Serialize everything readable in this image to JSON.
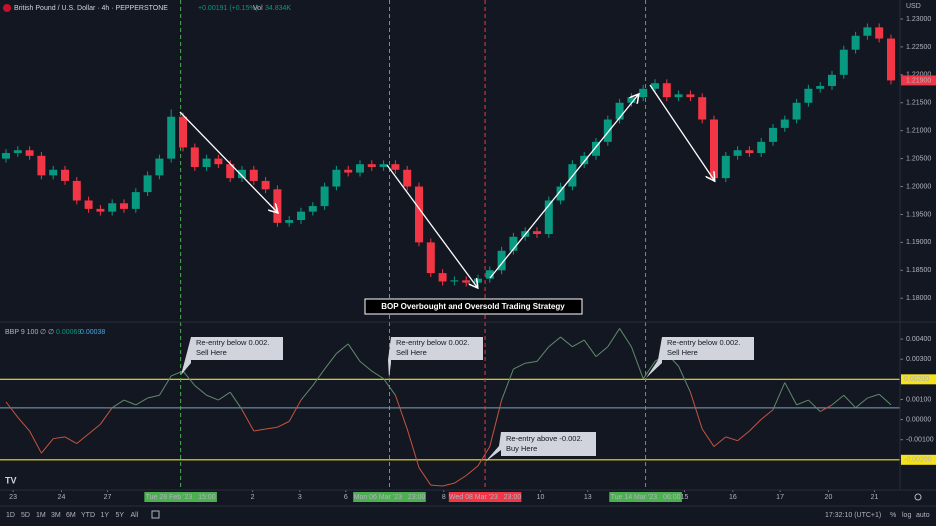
{
  "header": {
    "symbol": "British Pound / U.S. Dollar · 4h · PEPPERSTONE",
    "change": "+0.00191 (+0.15%)",
    "vol_label": "Vol",
    "volume": "34.834K",
    "currency": "USD"
  },
  "indicator_header": {
    "name": "BBP 9 100",
    "symbols": "∅ ∅",
    "value1": "0.00069",
    "value2": "0.00038"
  },
  "title": "BOP Overbought and Oversold Trading Strategy",
  "callouts": [
    {
      "lines": [
        "Re-entry below 0.002.",
        "Sell Here"
      ]
    },
    {
      "lines": [
        "Re-entry below 0.002.",
        "Sell Here"
      ]
    },
    {
      "lines": [
        "Re-entry below 0.002.",
        "Sell Here"
      ]
    },
    {
      "lines": [
        "Re-entry above -0.002.",
        "Buy Here"
      ]
    }
  ],
  "toolbar": {
    "periods": [
      "1D",
      "5D",
      "1M",
      "3M",
      "6M",
      "YTD",
      "1Y",
      "5Y",
      "All"
    ],
    "time": "17:32:10 (UTC+1)",
    "percent": "%",
    "log": "log",
    "auto": "auto"
  },
  "chart_data": [
    {
      "type": "candlestick",
      "up_color": "#089981",
      "down_color": "#f23645",
      "ylim": [
        1.1761,
        1.2334
      ],
      "yticks": [
        {
          "value": 1.23,
          "label": "1.23000"
        },
        {
          "value": 1.225,
          "label": "1.22500"
        },
        {
          "value": 1.22,
          "label": "1.22000"
        },
        {
          "value": 1.215,
          "label": "1.21500"
        },
        {
          "value": 1.21,
          "label": "1.21000"
        },
        {
          "value": 1.205,
          "label": "1.20500"
        },
        {
          "value": 1.2,
          "label": "1.20000"
        },
        {
          "value": 1.195,
          "label": "1.19500"
        },
        {
          "value": 1.19,
          "label": "1.19000"
        },
        {
          "value": 1.185,
          "label": "1.18500"
        },
        {
          "value": 1.18,
          "label": "1.18000"
        }
      ],
      "last_label": {
        "value": 1.219,
        "label": "1.21900"
      },
      "candles": [
        [
          1.205,
          1.2067,
          1.2043,
          1.206
        ],
        [
          1.206,
          1.2072,
          1.2053,
          1.2065
        ],
        [
          1.2065,
          1.2072,
          1.2048,
          1.2055
        ],
        [
          1.2055,
          1.2062,
          1.2013,
          1.202
        ],
        [
          1.202,
          1.2037,
          1.2013,
          1.203
        ],
        [
          1.203,
          1.2037,
          1.2003,
          1.201
        ],
        [
          1.201,
          1.2017,
          1.1968,
          1.1975
        ],
        [
          1.1975,
          1.1982,
          1.1953,
          1.196
        ],
        [
          1.196,
          1.1967,
          1.1948,
          1.1955
        ],
        [
          1.1955,
          1.1977,
          1.1948,
          1.197
        ],
        [
          1.197,
          1.1977,
          1.1953,
          1.196
        ],
        [
          1.196,
          1.1997,
          1.1953,
          1.199
        ],
        [
          1.199,
          1.2027,
          1.1983,
          1.202
        ],
        [
          1.202,
          1.2057,
          1.2013,
          1.205
        ],
        [
          1.205,
          1.2138,
          1.2043,
          1.2125
        ],
        [
          1.2125,
          1.2132,
          1.2063,
          1.207
        ],
        [
          1.207,
          1.2077,
          1.2028,
          1.2035
        ],
        [
          1.2035,
          1.2057,
          1.2028,
          1.205
        ],
        [
          1.205,
          1.2057,
          1.2033,
          1.204
        ],
        [
          1.204,
          1.2047,
          1.2008,
          1.2015
        ],
        [
          1.2015,
          1.2037,
          1.2008,
          1.203
        ],
        [
          1.203,
          1.2037,
          1.2003,
          1.201
        ],
        [
          1.201,
          1.2017,
          1.1988,
          1.1995
        ],
        [
          1.1995,
          1.2002,
          1.1928,
          1.1935
        ],
        [
          1.1935,
          1.1947,
          1.1928,
          1.194
        ],
        [
          1.194,
          1.1962,
          1.1933,
          1.1955
        ],
        [
          1.1955,
          1.1972,
          1.1948,
          1.1965
        ],
        [
          1.1965,
          1.2007,
          1.1958,
          1.2
        ],
        [
          1.2,
          1.2037,
          1.1993,
          1.203
        ],
        [
          1.203,
          1.2037,
          1.2018,
          1.2025
        ],
        [
          1.2025,
          1.2047,
          1.2018,
          1.204
        ],
        [
          1.204,
          1.2047,
          1.2028,
          1.2035
        ],
        [
          1.2035,
          1.2047,
          1.2028,
          1.204
        ],
        [
          1.204,
          1.2047,
          1.2023,
          1.203
        ],
        [
          1.203,
          1.2037,
          1.1993,
          1.2
        ],
        [
          1.2,
          1.2007,
          1.1893,
          1.19
        ],
        [
          1.19,
          1.1907,
          1.1838,
          1.1845
        ],
        [
          1.1845,
          1.1852,
          1.1823,
          1.183
        ],
        [
          1.183,
          1.1839,
          1.1823,
          1.1832
        ],
        [
          1.1832,
          1.1839,
          1.1821,
          1.1828
        ],
        [
          1.1828,
          1.1842,
          1.1821,
          1.1835
        ],
        [
          1.1835,
          1.1857,
          1.1828,
          1.185
        ],
        [
          1.185,
          1.1892,
          1.1843,
          1.1885
        ],
        [
          1.1885,
          1.1917,
          1.1878,
          1.191
        ],
        [
          1.191,
          1.1927,
          1.1903,
          1.192
        ],
        [
          1.192,
          1.1927,
          1.1908,
          1.1915
        ],
        [
          1.1915,
          1.1982,
          1.1908,
          1.1975
        ],
        [
          1.1975,
          1.2007,
          1.1968,
          1.2
        ],
        [
          1.2,
          1.2047,
          1.1993,
          1.204
        ],
        [
          1.204,
          1.2062,
          1.2033,
          1.2055
        ],
        [
          1.2055,
          1.2087,
          1.2048,
          1.208
        ],
        [
          1.208,
          1.2127,
          1.2073,
          1.212
        ],
        [
          1.212,
          1.2157,
          1.2113,
          1.215
        ],
        [
          1.215,
          1.2167,
          1.2143,
          1.216
        ],
        [
          1.216,
          1.2182,
          1.2153,
          1.2175
        ],
        [
          1.2175,
          1.2192,
          1.2168,
          1.2185
        ],
        [
          1.2185,
          1.2192,
          1.2153,
          1.216
        ],
        [
          1.216,
          1.2172,
          1.2153,
          1.2165
        ],
        [
          1.2165,
          1.2172,
          1.2153,
          1.216
        ],
        [
          1.216,
          1.2167,
          1.2113,
          1.212
        ],
        [
          1.212,
          1.2127,
          1.2008,
          1.2015
        ],
        [
          1.2015,
          1.2062,
          1.2008,
          1.2055
        ],
        [
          1.2055,
          1.2072,
          1.2048,
          1.2065
        ],
        [
          1.2065,
          1.2072,
          1.2053,
          1.206
        ],
        [
          1.206,
          1.2087,
          1.2053,
          1.208
        ],
        [
          1.208,
          1.2112,
          1.2073,
          1.2105
        ],
        [
          1.2105,
          1.2127,
          1.2098,
          1.212
        ],
        [
          1.212,
          1.2157,
          1.2113,
          1.215
        ],
        [
          1.215,
          1.2182,
          1.2143,
          1.2175
        ],
        [
          1.2175,
          1.2187,
          1.2168,
          1.218
        ],
        [
          1.218,
          1.2207,
          1.2173,
          1.22
        ],
        [
          1.22,
          1.2252,
          1.2193,
          1.2245
        ],
        [
          1.2245,
          1.2277,
          1.2238,
          1.227
        ],
        [
          1.227,
          1.2292,
          1.2263,
          1.2285
        ],
        [
          1.2285,
          1.2292,
          1.2258,
          1.2265
        ],
        [
          1.2265,
          1.2272,
          1.2183,
          1.219
        ]
      ]
    },
    {
      "type": "line",
      "ylim": [
        -0.0035,
        0.0047
      ],
      "yticks": [
        {
          "value": 0.004,
          "label": "0.00400"
        },
        {
          "value": 0.003,
          "label": "0.00300"
        },
        {
          "value": 0.001,
          "label": "0.00100"
        },
        {
          "value": 0,
          "label": "0.00000"
        },
        {
          "value": -0.001,
          "label": "-0.00100"
        }
      ],
      "levels": [
        {
          "value": 0.002,
          "label": "0.00200"
        },
        {
          "value": -0.002,
          "label": "-0.00200"
        }
      ],
      "level_color": "#f5e21b",
      "signal": 0.00058,
      "signal_color": "#7fa4b8",
      "color_above": "#5f8a6a",
      "color_below": "#c4553d",
      "values": [
        0.00088,
        0.00011,
        -0.00057,
        -0.00167,
        -0.00095,
        -0.00086,
        -0.00119,
        -0.00071,
        -0.00023,
        0.00059,
        0.00097,
        0.00073,
        0.00107,
        0.00121,
        0.00217,
        0.00241,
        0.00169,
        0.00121,
        0.00097,
        0.00136,
        0.00049,
        -0.00057,
        -0.00047,
        -0.00038,
        -9e-05,
        0.00097,
        0.00169,
        0.00251,
        0.00328,
        0.00376,
        0.00289,
        0.00241,
        0.00203,
        0.00121,
        -0.00047,
        -0.00239,
        -0.00326,
        -0.0033,
        -0.00316,
        -0.00278,
        -0.0023,
        -0.00134,
        0.00097,
        0.00251,
        0.0028,
        0.00289,
        0.00362,
        0.0041,
        0.00362,
        0.00395,
        0.00313,
        0.00362,
        0.00453,
        0.00362,
        0.00203,
        0.00289,
        0.00328,
        0.00265,
        0.00136,
        -0.00047,
        -0.00134,
        -0.00086,
        -0.00105,
        -0.00057,
        1e-05,
        0.00049,
        0.00184,
        0.00073,
        0.00097,
        0.0004,
        0.00073,
        0.00121,
        0.00059,
        0.00107,
        0.00126,
        0.00073
      ],
      "xticks": [
        {
          "value": 0.6,
          "label": "23"
        },
        {
          "value": 4.7,
          "label": "24"
        },
        {
          "value": 8.6,
          "label": "27"
        },
        {
          "value": 14.8,
          "label": "Tue 28 Feb '23   15:00",
          "color": "#4caf50"
        },
        {
          "value": 20.9,
          "label": "2"
        },
        {
          "value": 24.9,
          "label": "3"
        },
        {
          "value": 28.8,
          "label": "6"
        },
        {
          "value": 32.5,
          "label": "Mon 06 Mar '23   23:00",
          "color": "#4caf50"
        },
        {
          "value": 37.1,
          "label": "8"
        },
        {
          "value": 40.6,
          "label": "Wed 08 Mar '23   23:00",
          "color": "#f23645"
        },
        {
          "value": 45.3,
          "label": "10"
        },
        {
          "value": 49.3,
          "label": "13"
        },
        {
          "value": 54.2,
          "label": "Tue 14 Mar '23   06:00",
          "color": "#4caf50"
        },
        {
          "value": 57.5,
          "label": "15"
        },
        {
          "value": 61.6,
          "label": "16"
        },
        {
          "value": 65.6,
          "label": "17"
        },
        {
          "value": 69.7,
          "label": "20"
        },
        {
          "value": 73.6,
          "label": "21"
        }
      ]
    }
  ]
}
